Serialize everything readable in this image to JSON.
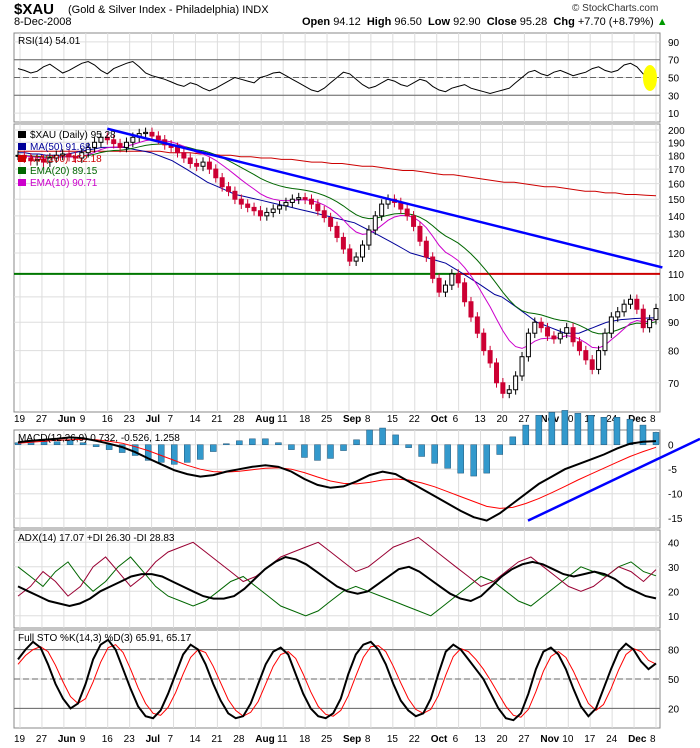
{
  "header": {
    "symbol": "$XAU",
    "name": "(Gold & Silver Index - Philadelphia)",
    "exchange": "INDX",
    "date": "8-Dec-2008",
    "brand": "© StockCharts.com",
    "open_label": "Open",
    "open": "94.12",
    "high_label": "High",
    "high": "96.50",
    "low_label": "Low",
    "low": "92.90",
    "close_label": "Close",
    "close": "95.28",
    "chg_label": "Chg",
    "chg": "+7.70 (+8.79%)",
    "chg_arrow": "▲"
  },
  "colors": {
    "up": "#000000",
    "down": "#cc0033",
    "ma50": "#000099",
    "ma200": "#cc0000",
    "ema20": "#006600",
    "ema10": "#cc00cc",
    "trendline": "#0000ff",
    "support": "#007700",
    "resistance": "#cc0000",
    "macd_hist": "#3399cc",
    "grid": "#dddddd",
    "highlight": "#ffff00"
  },
  "chart_data": {
    "type": "candlestick",
    "x_labels": [
      "19",
      "27",
      "Jun",
      "9",
      "16",
      "23",
      "Jul",
      "7",
      "14",
      "21",
      "28",
      "Aug",
      "11",
      "18",
      "25",
      "Sep",
      "8",
      "15",
      "22",
      "Oct",
      "6",
      "13",
      "20",
      "27",
      "Nov",
      "10",
      "17",
      "24",
      "Dec",
      "8"
    ],
    "price_panel": {
      "legend": [
        {
          "key": "price",
          "text": "$XAU (Daily) 95.28"
        },
        {
          "key": "ma50",
          "text": "MA(50) 91.68"
        },
        {
          "key": "ma200",
          "text": "MA(200) 152.18"
        },
        {
          "key": "ema20",
          "text": "EMA(20) 89.15"
        },
        {
          "key": "ema10",
          "text": "EMA(10) 90.71"
        }
      ],
      "y_ticks": [
        70,
        80,
        90,
        100,
        110,
        120,
        130,
        140,
        150,
        160,
        170,
        180,
        190,
        200
      ],
      "ylim": [
        62,
        205
      ],
      "log_scale": true,
      "horizontal_line": 110,
      "close_series": [
        180,
        178,
        176,
        177,
        175,
        178,
        180,
        181,
        179,
        178,
        182,
        186,
        190,
        194,
        192,
        189,
        186,
        190,
        194,
        197,
        198,
        195,
        192,
        188,
        186,
        182,
        178,
        174,
        172,
        175,
        170,
        164,
        158,
        155,
        150,
        147,
        145,
        143,
        140,
        142,
        144,
        146,
        148,
        150,
        151,
        150,
        147,
        143,
        139,
        134,
        128,
        122,
        116,
        118,
        124,
        132,
        140,
        147,
        150,
        148,
        144,
        140,
        134,
        126,
        118,
        108,
        102,
        105,
        110,
        106,
        98,
        92,
        86,
        80,
        76,
        70,
        67,
        68,
        72,
        78,
        86,
        90,
        88,
        85,
        84,
        86,
        88,
        83,
        80,
        77,
        74,
        80,
        86,
        92,
        94,
        97,
        99,
        95,
        88,
        91,
        95.28
      ],
      "ma50_series": [
        182,
        182,
        181,
        181,
        180,
        180,
        180,
        181,
        182,
        183,
        184,
        185,
        186,
        186,
        186,
        186,
        185,
        184,
        183,
        182,
        180,
        178,
        176,
        173,
        170,
        167,
        164,
        161,
        159,
        157,
        155,
        153,
        152,
        151,
        150,
        149,
        148,
        147,
        146,
        145,
        144,
        143,
        142,
        141,
        140,
        139,
        138,
        137,
        136,
        134,
        132,
        130,
        128,
        126,
        124,
        122,
        120,
        119,
        118,
        117,
        116,
        115,
        113,
        111,
        109,
        107,
        105,
        103,
        101,
        100,
        98,
        96,
        94,
        92,
        90,
        89,
        88,
        87,
        86,
        86,
        86,
        87,
        88,
        89,
        90,
        90.5,
        91,
        91.2,
        91.4,
        91.5,
        91.6,
        91.68
      ],
      "ma200_series": [
        183,
        183,
        183,
        183,
        183,
        183,
        183,
        183,
        183,
        183,
        183,
        183,
        183,
        183,
        183,
        182,
        182,
        182,
        181,
        181,
        180,
        180,
        179,
        179,
        178,
        178,
        177,
        177,
        176,
        175,
        175,
        174,
        174,
        173,
        172,
        172,
        171,
        170,
        169,
        169,
        168,
        167,
        166,
        166,
        165,
        164,
        163,
        162,
        161,
        161,
        160,
        159,
        158,
        158,
        157,
        156,
        155,
        155,
        154,
        154,
        153,
        153,
        152.5,
        152.18
      ],
      "trendlines": [
        {
          "name": "downtrend",
          "from": [
            14,
            201
          ],
          "to": [
            101,
            113
          ]
        }
      ]
    },
    "rsi_panel": {
      "label": "RSI(14) 54.01",
      "y_ticks": [
        10,
        30,
        50,
        70,
        90
      ],
      "ylim": [
        0,
        100
      ],
      "bands": [
        30,
        70
      ],
      "mid": 50,
      "series": [
        60,
        58,
        55,
        57,
        62,
        65,
        60,
        55,
        58,
        62,
        66,
        68,
        64,
        58,
        54,
        60,
        63,
        66,
        68,
        62,
        55,
        52,
        50,
        48,
        45,
        42,
        40,
        44,
        42,
        38,
        35,
        38,
        42,
        46,
        50,
        48,
        46,
        44,
        50,
        52,
        55,
        56,
        52,
        48,
        44,
        40,
        36,
        34,
        38,
        44,
        50,
        56,
        54,
        48,
        42,
        38,
        40,
        44,
        48,
        46,
        42,
        40,
        44,
        48,
        46,
        40,
        36,
        34,
        38,
        40,
        42,
        38,
        36,
        34,
        32,
        34,
        36,
        38,
        44,
        50,
        56,
        58,
        54,
        52,
        56,
        58,
        55,
        52,
        54,
        56,
        60,
        62,
        58,
        56,
        58,
        64,
        66,
        62,
        54,
        52,
        54.01
      ]
    },
    "macd_panel": {
      "label": "MACD(12,26,9) 0.732, -0.526, 1.258",
      "y_ticks": [
        -15,
        -10,
        -5,
        0
      ],
      "ylim": [
        -17,
        3
      ],
      "macd": [
        0.5,
        0.8,
        1.0,
        1.2,
        1.5,
        1.3,
        0.8,
        0.2,
        -0.5,
        -1.5,
        -2.8,
        -4.0,
        -5.2,
        -6.0,
        -6.5,
        -6.2,
        -5.5,
        -5.0,
        -4.5,
        -4.2,
        -4.5,
        -5.5,
        -7.0,
        -8.2,
        -8.8,
        -8.5,
        -7.5,
        -6.2,
        -5.5,
        -6.0,
        -7.5,
        -9.0,
        -10.5,
        -12.0,
        -13.5,
        -14.8,
        -15.5,
        -14.0,
        -12.0,
        -10.0,
        -8.0,
        -6.5,
        -5.0,
        -4.0,
        -3.0,
        -2.0,
        -0.8,
        0.2,
        0.6,
        0.732
      ],
      "signal": [
        0.3,
        0.5,
        0.7,
        0.9,
        1.0,
        1.1,
        1.0,
        0.7,
        0.3,
        -0.4,
        -1.2,
        -2.2,
        -3.2,
        -4.2,
        -5.0,
        -5.5,
        -5.6,
        -5.4,
        -5.1,
        -4.8,
        -4.7,
        -5.0,
        -5.7,
        -6.6,
        -7.4,
        -7.9,
        -8.0,
        -7.7,
        -7.2,
        -7.0,
        -7.2,
        -7.8,
        -8.6,
        -9.6,
        -10.6,
        -11.6,
        -12.6,
        -13.0,
        -12.8,
        -12.0,
        -11.0,
        -9.8,
        -8.5,
        -7.2,
        -6.0,
        -4.8,
        -3.6,
        -2.4,
        -1.4,
        -0.526
      ]
    },
    "adx_panel": {
      "label": "ADX(14) 17.07  +DI 26.30  -DI 28.83",
      "y_ticks": [
        10,
        20,
        30,
        40
      ],
      "ylim": [
        5,
        45
      ],
      "adx": [
        22,
        20,
        18,
        16,
        15,
        14,
        15,
        17,
        20,
        22,
        24,
        26,
        27,
        27,
        26,
        24,
        22,
        20,
        18,
        17,
        17,
        18,
        21,
        25,
        29,
        32,
        34,
        33,
        31,
        28,
        25,
        22,
        20,
        19,
        20,
        23,
        26,
        29,
        30,
        28,
        25,
        22,
        19,
        17,
        16,
        18,
        22,
        26,
        29,
        31,
        32,
        31,
        29,
        27,
        26,
        27,
        28,
        27,
        25,
        22,
        20,
        18,
        17.07
      ],
      "plus_di": [
        30,
        26,
        22,
        28,
        32,
        25,
        20,
        24,
        30,
        34,
        28,
        22,
        18,
        16,
        14,
        16,
        20,
        24,
        26,
        22,
        18,
        14,
        12,
        10,
        12,
        16,
        20,
        22,
        20,
        18,
        16,
        14,
        12,
        10,
        14,
        18,
        22,
        26,
        24,
        20,
        16,
        14,
        18,
        22,
        26,
        30,
        28,
        26,
        30,
        32,
        28,
        26.3
      ],
      "minus_di": [
        18,
        22,
        28,
        24,
        18,
        22,
        30,
        34,
        28,
        22,
        26,
        32,
        36,
        38,
        40,
        36,
        32,
        28,
        24,
        26,
        30,
        34,
        36,
        38,
        40,
        36,
        32,
        28,
        30,
        34,
        38,
        40,
        42,
        38,
        34,
        30,
        26,
        22,
        24,
        28,
        32,
        34,
        30,
        26,
        22,
        20,
        22,
        26,
        30,
        28,
        24,
        28.83
      ]
    },
    "sto_panel": {
      "label": "Full STO %K(14,3) %D(3) 65.91, 65.17",
      "y_ticks": [
        20,
        50,
        80
      ],
      "ylim": [
        0,
        100
      ],
      "bands": [
        20,
        80
      ],
      "mid": 50,
      "k": [
        70,
        80,
        88,
        82,
        65,
        45,
        30,
        20,
        25,
        45,
        70,
        85,
        90,
        80,
        60,
        40,
        22,
        12,
        10,
        18,
        35,
        55,
        75,
        85,
        80,
        65,
        45,
        28,
        15,
        10,
        12,
        25,
        45,
        65,
        78,
        82,
        75,
        55,
        35,
        20,
        12,
        10,
        15,
        30,
        55,
        75,
        85,
        88,
        80,
        65,
        45,
        28,
        18,
        12,
        15,
        30,
        55,
        78,
        85,
        80,
        70,
        60,
        50,
        35,
        20,
        10,
        8,
        15,
        35,
        60,
        78,
        82,
        75,
        60,
        40,
        22,
        12,
        20,
        40,
        60,
        78,
        86,
        80,
        68,
        60,
        65.91
      ],
      "d": [
        65,
        74,
        80,
        83,
        78,
        64,
        47,
        32,
        25,
        30,
        47,
        67,
        82,
        85,
        77,
        60,
        41,
        25,
        15,
        13,
        21,
        36,
        55,
        72,
        80,
        77,
        63,
        46,
        29,
        18,
        12,
        16,
        27,
        45,
        63,
        75,
        78,
        71,
        55,
        37,
        22,
        14,
        12,
        18,
        33,
        53,
        72,
        83,
        84,
        78,
        63,
        46,
        30,
        19,
        15,
        19,
        33,
        54,
        73,
        81,
        78,
        70,
        60,
        48,
        35,
        22,
        13,
        11,
        19,
        37,
        58,
        73,
        78,
        72,
        58,
        41,
        25,
        18,
        24,
        40,
        59,
        75,
        81,
        78,
        69,
        65.17
      ]
    }
  }
}
